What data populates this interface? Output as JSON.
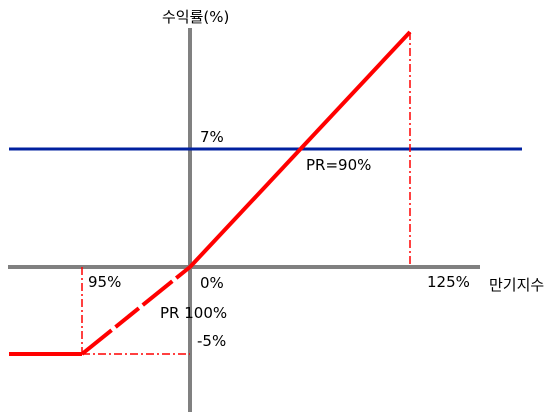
{
  "diagram": {
    "y_axis_label": "수익률(%)",
    "x_axis_label": "만기지수",
    "labels": {
      "cap": "7%",
      "pr90": "PR=90%",
      "pct95": "95%",
      "zero": "0%",
      "pct125": "125%",
      "pr100": "PR 100%",
      "floor": "-5%"
    },
    "colors": {
      "axis": "#808080",
      "cap_line": "#00209f",
      "payoff": "#ff0000",
      "guide": "#ff0000"
    }
  }
}
